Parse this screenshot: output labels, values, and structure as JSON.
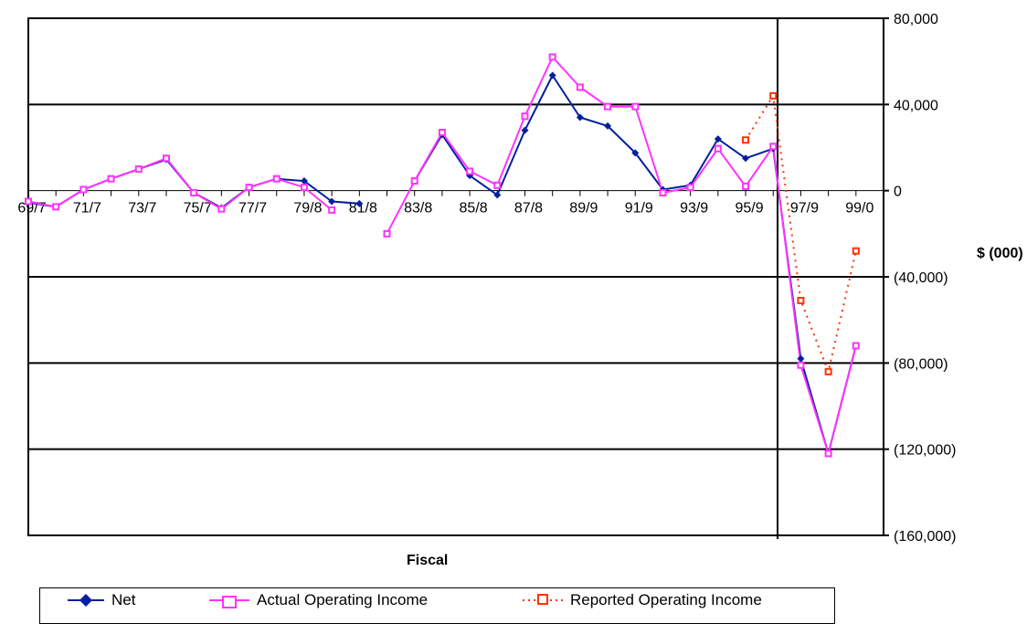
{
  "chart_data": {
    "type": "line",
    "title": "",
    "xlabel": "Fiscal",
    "ylabel": "$ (000)",
    "ylim": [
      -160000,
      80000
    ],
    "y_ticks": [
      80000,
      40000,
      0,
      -40000,
      -80000,
      -120000,
      -160000
    ],
    "y_tick_labels": [
      "80,000",
      "40,000",
      "0",
      "(40,000)",
      "(80,000)",
      "(120,000)",
      "(160,000)"
    ],
    "x_tick_labels": [
      "69/7",
      "71/7",
      "73/7",
      "75/7",
      "77/7",
      "79/8",
      "81/8",
      "83/8",
      "85/8",
      "87/8",
      "89/9",
      "91/9",
      "93/9",
      "95/9",
      "97/9",
      "99/0"
    ],
    "grid": "horizontal",
    "legend_position": "bottom",
    "x": [
      0,
      1,
      2,
      3,
      4,
      5,
      6,
      7,
      8,
      9,
      10,
      11,
      12,
      13,
      14,
      15,
      16,
      17,
      18,
      19,
      20,
      21,
      22,
      23,
      24,
      25,
      26,
      27,
      28,
      29,
      30,
      31
    ],
    "series": [
      {
        "name": "Net",
        "color": "#00209f",
        "marker": "diamond",
        "values": [
          -5500,
          -7500,
          500,
          5500,
          10000,
          14500,
          -1000,
          -8000,
          1500,
          5500,
          4500,
          -5000,
          -6000,
          null,
          4500,
          26000,
          7000,
          -2000,
          28000,
          53500,
          34000,
          30000,
          17500,
          500,
          2500,
          24000,
          15000,
          19500,
          -78000,
          -122000,
          -72000,
          null
        ]
      },
      {
        "name": "Actual Operating Income",
        "color": "#ff33ff",
        "marker": "square-open",
        "values": [
          -5000,
          -7500,
          500,
          5500,
          10000,
          15000,
          -1000,
          -8500,
          1500,
          5500,
          1500,
          -9000,
          null,
          -20000,
          4500,
          27000,
          9000,
          2500,
          34500,
          62000,
          48000,
          39000,
          39000,
          -1000,
          1500,
          19500,
          2000,
          20500,
          -81000,
          -122000,
          -72000,
          null
        ]
      },
      {
        "name": "Reported Operating Income",
        "color": "#ff3300",
        "marker": "square-open",
        "line": "dotted",
        "values": [
          null,
          null,
          null,
          null,
          null,
          null,
          null,
          null,
          null,
          null,
          null,
          null,
          null,
          null,
          null,
          null,
          null,
          null,
          null,
          null,
          null,
          null,
          null,
          null,
          null,
          null,
          23500,
          44000,
          -51000,
          -84000,
          -28000,
          null
        ]
      }
    ]
  }
}
